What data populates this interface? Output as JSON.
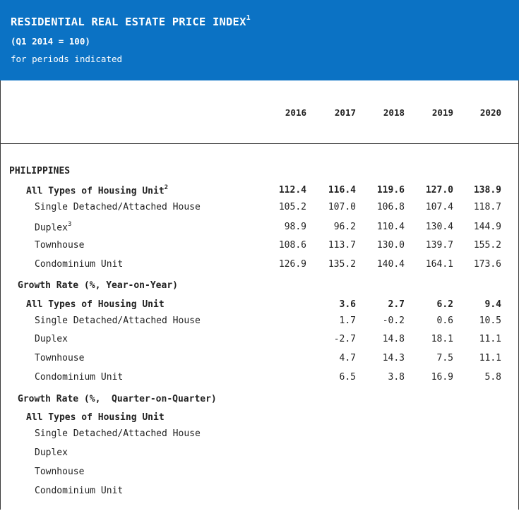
{
  "header": {
    "title": "RESIDENTIAL REAL ESTATE PRICE INDEX",
    "title_footnote": "1",
    "base": "(Q1 2014 = 100)",
    "period_note": "for periods indicated"
  },
  "colors": {
    "header_bg": "#0b72c4",
    "header_text": "#ffffff",
    "text": "#222222",
    "border": "#3a3a3a"
  },
  "years": [
    "2016",
    "2017",
    "2018",
    "2019",
    "2020"
  ],
  "region": "PHILIPPINES",
  "index": {
    "total": {
      "label": "All Types of Housing Unit",
      "footnote": "2",
      "values": [
        "112.4",
        "116.4",
        "119.6",
        "127.0",
        "138.9"
      ]
    },
    "rows": [
      {
        "label": "Single Detached/Attached House",
        "footnote": "",
        "values": [
          "105.2",
          "107.0",
          "106.8",
          "107.4",
          "118.7"
        ]
      },
      {
        "label": "Duplex",
        "footnote": "3",
        "values": [
          "98.9",
          "96.2",
          "110.4",
          "130.4",
          "144.9"
        ]
      },
      {
        "label": "Townhouse",
        "footnote": "",
        "values": [
          "108.6",
          "113.7",
          "130.0",
          "139.7",
          "155.2"
        ]
      },
      {
        "label": "Condominium Unit",
        "footnote": "",
        "values": [
          "126.9",
          "135.2",
          "140.4",
          "164.1",
          "173.6"
        ]
      }
    ]
  },
  "yoy": {
    "heading": "Growth Rate (%, Year-on-Year)",
    "total": {
      "label": "All Types of Housing Unit",
      "values": [
        "",
        "3.6",
        "2.7",
        "6.2",
        "9.4"
      ]
    },
    "rows": [
      {
        "label": "Single Detached/Attached House",
        "values": [
          "",
          "1.7",
          "-0.2",
          "0.6",
          "10.5"
        ]
      },
      {
        "label": "Duplex",
        "values": [
          "",
          "-2.7",
          "14.8",
          "18.1",
          "11.1"
        ]
      },
      {
        "label": "Townhouse",
        "values": [
          "",
          "4.7",
          "14.3",
          "7.5",
          "11.1"
        ]
      },
      {
        "label": "Condominium Unit",
        "values": [
          "",
          "6.5",
          "3.8",
          "16.9",
          "5.8"
        ]
      }
    ]
  },
  "qoq": {
    "heading": "Growth Rate (%,  Quarter-on-Quarter)",
    "total": {
      "label": "All Types of Housing Unit"
    },
    "rows": [
      {
        "label": "Single Detached/Attached House"
      },
      {
        "label": "Duplex"
      },
      {
        "label": "Townhouse"
      },
      {
        "label": "Condominium Unit"
      }
    ]
  }
}
